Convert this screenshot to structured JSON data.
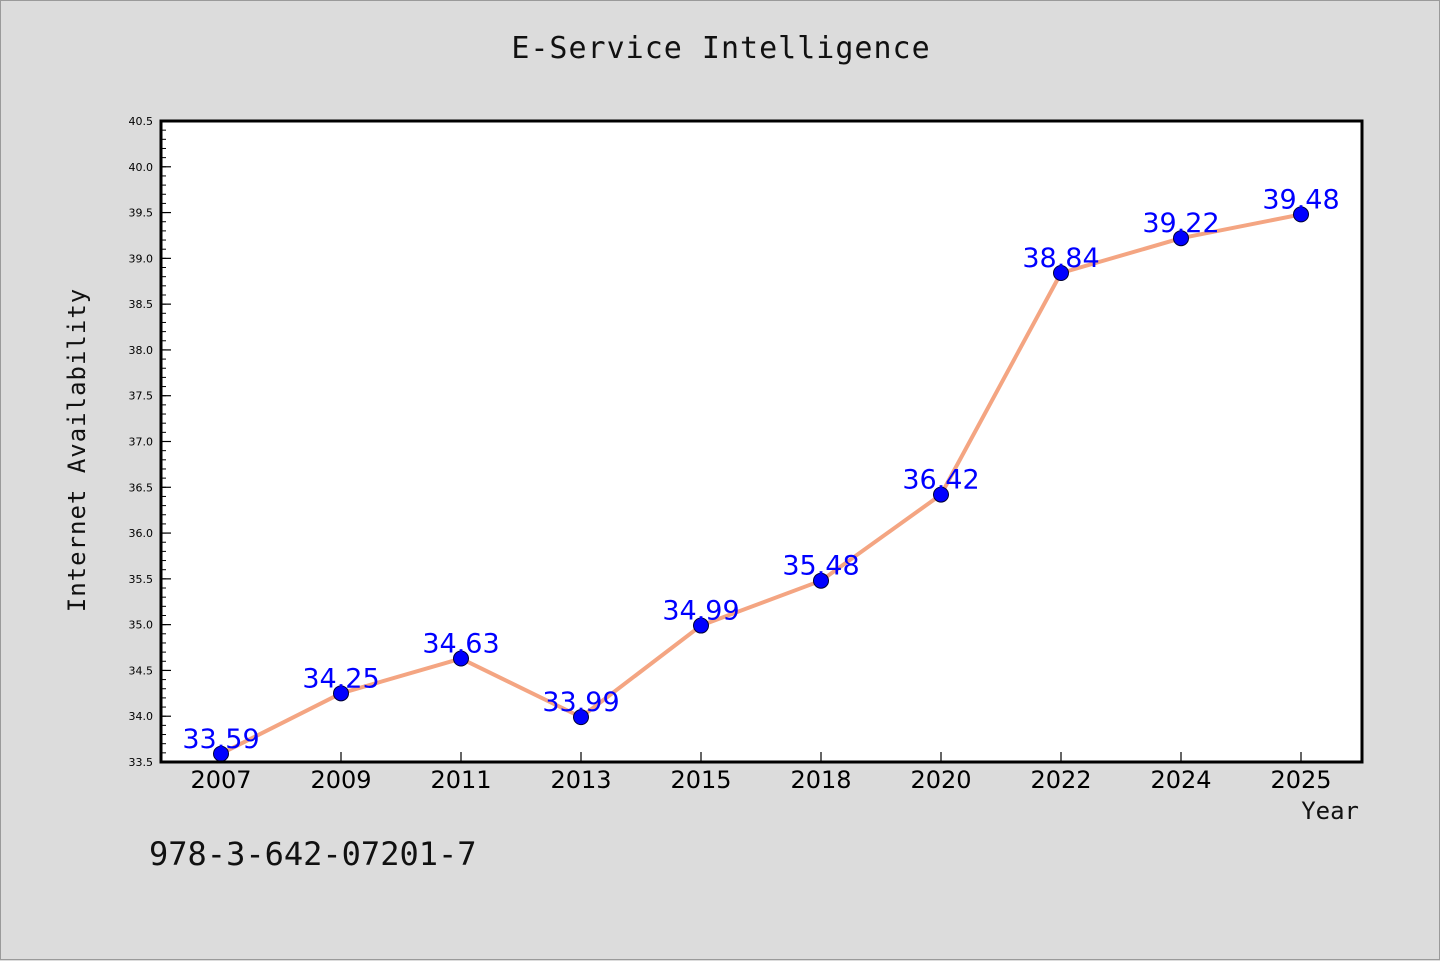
{
  "figure": {
    "footnote": "978-3-642-07201-7"
  },
  "chart_data": {
    "type": "line",
    "title": "E-Service Intelligence",
    "xlabel": "Year",
    "ylabel": "Internet Availability",
    "categories": [
      "2007",
      "2009",
      "2011",
      "2013",
      "2015",
      "2018",
      "2020",
      "2022",
      "2024",
      "2025"
    ],
    "series": [
      {
        "values": [
          33.59,
          34.25,
          34.63,
          33.99,
          34.99,
          35.48,
          36.42,
          38.84,
          39.22,
          39.48
        ],
        "line_color": "#f4a582",
        "marker_color": "#0000ff"
      }
    ],
    "ylim": [
      33.5,
      40.5
    ],
    "yticks": [
      "33.5",
      "34.0",
      "34.5",
      "35.0",
      "35.5",
      "36.0",
      "36.5",
      "37.0",
      "37.5",
      "38.0",
      "38.5",
      "39.0",
      "39.5",
      "40.0",
      "40.5"
    ],
    "data_labels": [
      "33.59",
      "34.25",
      "34.63",
      "33.99",
      "34.99",
      "35.48",
      "36.42",
      "38.84",
      "39.22",
      "39.48"
    ],
    "label_color": "#0000ff",
    "grid": false,
    "legend": "none"
  }
}
